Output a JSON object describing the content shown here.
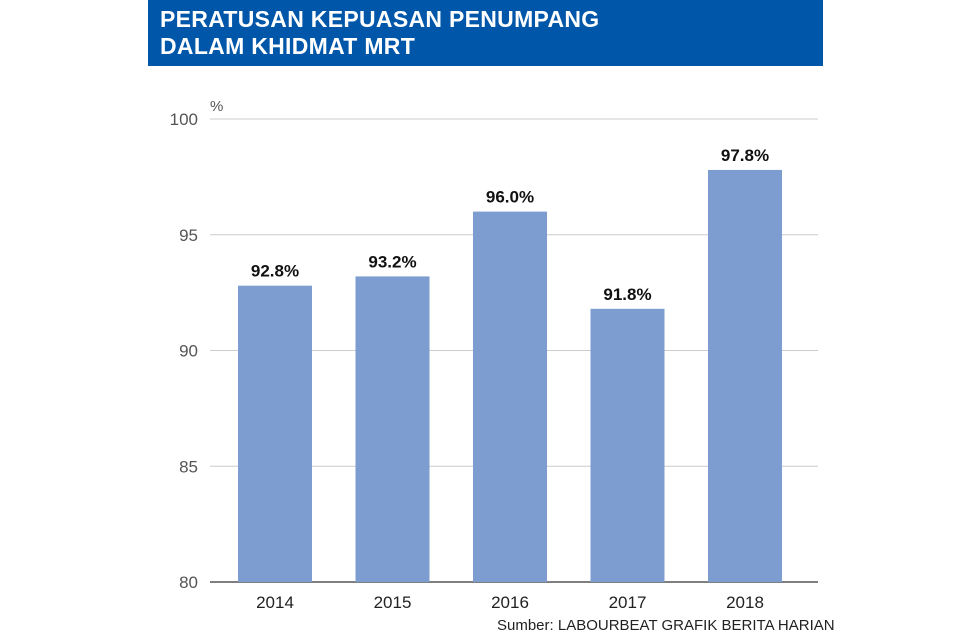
{
  "title": {
    "line1": "PERATUSAN KEPUASAN PENUMPANG",
    "line2": "DALAM KHIDMAT MRT"
  },
  "colors": {
    "banner": "#0056a8",
    "bar": "#7d9ccf",
    "grid": "#cccccc",
    "axis": "#555555",
    "data_label": "#111111"
  },
  "chart_data": {
    "type": "bar",
    "categories": [
      "2014",
      "2015",
      "2016",
      "2017",
      "2018"
    ],
    "values": [
      92.8,
      93.2,
      96.0,
      91.8,
      97.8
    ],
    "data_labels": [
      "92.8%",
      "93.2%",
      "96.0%",
      "91.8%",
      "97.8%"
    ],
    "ylim": [
      80,
      100
    ],
    "yticks": [
      80,
      85,
      90,
      95,
      100
    ],
    "yunit": "%",
    "grid": true,
    "legend": "none",
    "xlabel": "",
    "ylabel": ""
  },
  "source": "Sumber: LABOURBEAT   GRAFIK BERITA HARIAN"
}
